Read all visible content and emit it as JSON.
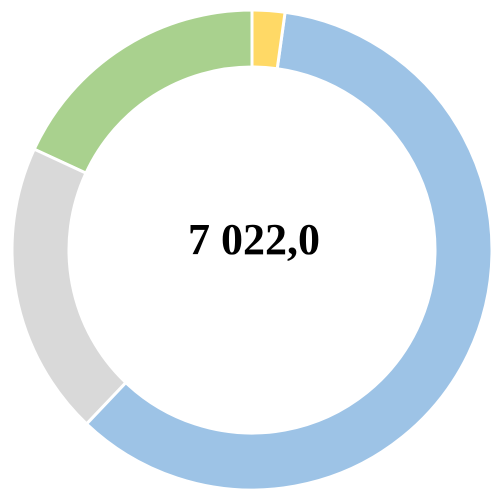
{
  "chart_data": {
    "type": "donut",
    "values": [
      2.2,
      59.9,
      19.8,
      18.1
    ],
    "colors": [
      "#ffd966",
      "#9dc3e6",
      "#d9d9d9",
      "#a9d18e"
    ],
    "center_label": "7 022,0"
  }
}
